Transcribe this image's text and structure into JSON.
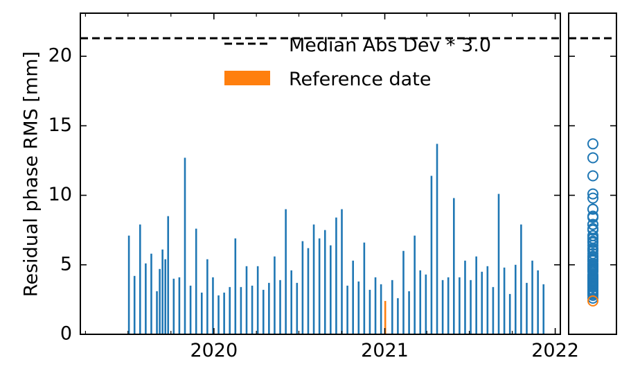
{
  "chart_data": {
    "type": "bar",
    "ylabel": "Residual phase RMS [mm]",
    "xlim": [
      "2019-03-21",
      "2022-01-12"
    ],
    "ylim": [
      0,
      23.1
    ],
    "x_ticks": [
      "2020",
      "2021",
      "2022"
    ],
    "x_tick_dates": [
      "2020-01-01",
      "2021-01-01",
      "2022-01-01"
    ],
    "y_ticks": [
      0,
      5,
      10,
      15,
      20
    ],
    "y_tick_labels": [
      "0",
      "5",
      "10",
      "15",
      "20"
    ],
    "threshold": {
      "name": "Median Abs Dev * 3.0",
      "value": 21.3,
      "style": "dashed",
      "color": "#000000"
    },
    "reference_date": {
      "name": "Reference date",
      "date": "2021-01-02",
      "value": 2.4,
      "color": "#ff7f0e"
    },
    "series_color": "#1f77b4",
    "legend_position": "top",
    "dates": [
      "2019-07-03",
      "2019-07-15",
      "2019-07-27",
      "2019-08-08",
      "2019-08-20",
      "2019-09-01",
      "2019-09-07",
      "2019-09-13",
      "2019-09-19",
      "2019-09-25",
      "2019-10-07",
      "2019-10-19",
      "2019-10-31",
      "2019-11-12",
      "2019-11-24",
      "2019-12-06",
      "2019-12-18",
      "2019-12-30",
      "2020-01-11",
      "2020-01-23",
      "2020-02-04",
      "2020-02-16",
      "2020-02-28",
      "2020-03-11",
      "2020-03-23",
      "2020-04-04",
      "2020-04-16",
      "2020-04-28",
      "2020-05-10",
      "2020-05-22",
      "2020-06-03",
      "2020-06-15",
      "2020-06-27",
      "2020-07-09",
      "2020-07-21",
      "2020-08-02",
      "2020-08-14",
      "2020-08-26",
      "2020-09-07",
      "2020-09-19",
      "2020-10-01",
      "2020-10-13",
      "2020-10-25",
      "2020-11-06",
      "2020-11-18",
      "2020-11-30",
      "2020-12-12",
      "2020-12-24",
      "2021-01-17",
      "2021-01-29",
      "2021-02-10",
      "2021-02-22",
      "2021-03-06",
      "2021-03-18",
      "2021-03-30",
      "2021-04-11",
      "2021-04-23",
      "2021-05-05",
      "2021-05-17",
      "2021-05-29",
      "2021-06-10",
      "2021-06-22",
      "2021-07-04",
      "2021-07-16",
      "2021-07-28",
      "2021-08-09",
      "2021-08-21",
      "2021-09-02",
      "2021-09-14",
      "2021-09-26",
      "2021-10-08",
      "2021-10-20",
      "2021-11-01",
      "2021-11-13",
      "2021-11-25",
      "2021-12-07"
    ],
    "values": [
      7.1,
      4.2,
      7.9,
      5.1,
      5.8,
      3.1,
      4.7,
      6.1,
      5.4,
      8.5,
      4.0,
      4.1,
      12.7,
      3.5,
      7.6,
      3.0,
      5.4,
      4.1,
      2.8,
      3.0,
      3.4,
      6.9,
      3.4,
      4.9,
      3.5,
      4.9,
      3.2,
      3.7,
      5.6,
      3.9,
      9.0,
      4.6,
      3.7,
      6.7,
      6.2,
      7.9,
      6.9,
      7.5,
      6.4,
      8.4,
      9.0,
      3.5,
      5.3,
      3.8,
      6.6,
      3.2,
      4.1,
      3.6,
      3.9,
      2.6,
      6.0,
      3.1,
      7.1,
      4.6,
      4.3,
      11.4,
      13.7,
      3.9,
      4.1,
      9.8,
      4.1,
      5.3,
      3.9,
      5.6,
      4.5,
      4.9,
      3.4,
      10.1,
      4.8,
      2.9,
      5.0,
      7.9,
      3.7,
      5.3,
      4.6,
      3.6
    ]
  }
}
